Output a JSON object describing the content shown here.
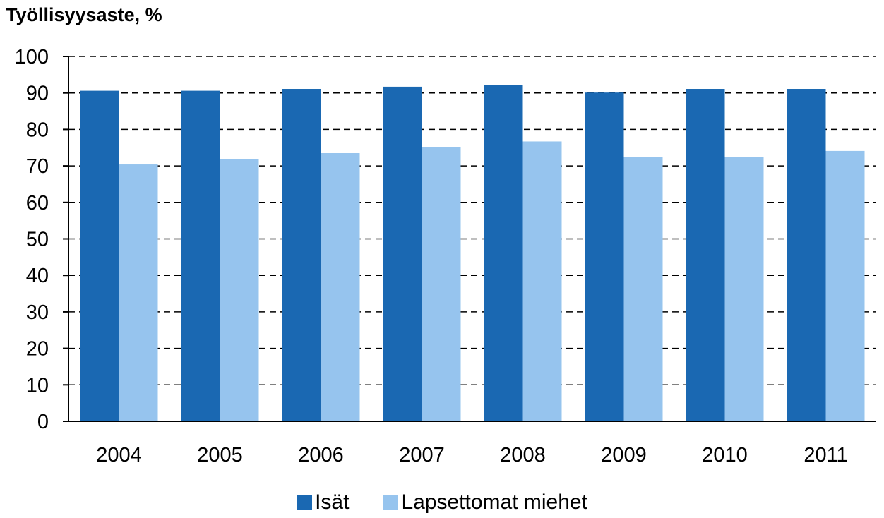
{
  "chart_data": {
    "type": "bar",
    "title": "Työllisyysaste, %",
    "categories": [
      "2004",
      "2005",
      "2006",
      "2007",
      "2008",
      "2009",
      "2010",
      "2011"
    ],
    "series": [
      {
        "name": "Isät",
        "color": "#1a68b2",
        "values": [
          90.6,
          90.6,
          91.1,
          91.7,
          92.1,
          90.1,
          91.1,
          91.1
        ]
      },
      {
        "name": "Lapsettomat miehet",
        "color": "#96c4ee",
        "values": [
          70.4,
          71.9,
          73.5,
          75.2,
          76.7,
          72.5,
          72.5,
          74.1
        ]
      }
    ],
    "ylim": [
      0,
      100
    ],
    "yticks": [
      "0",
      "10",
      "20",
      "30",
      "40",
      "50",
      "60",
      "70",
      "80",
      "90",
      "100"
    ],
    "grid": "dashed horizontal",
    "legend_position": "bottom"
  }
}
